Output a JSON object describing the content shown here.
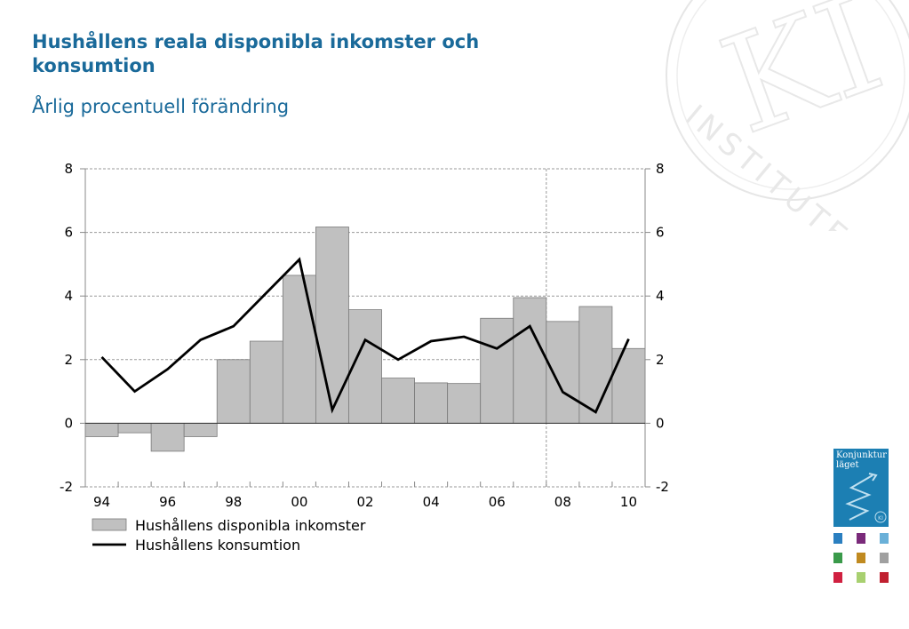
{
  "title": "Hushållens reala disponibla inkomster och konsumtion",
  "subtitle": "Årlig procentuell förändring",
  "watermark": {
    "text": "INSTITUTET",
    "monogram": "KI"
  },
  "logo": {
    "text_line1": "Konjunktur",
    "text_line2": "läget",
    "badge": "KI"
  },
  "chart_data": {
    "type": "bar",
    "years": [
      "94",
      "95",
      "96",
      "97",
      "98",
      "99",
      "00",
      "01",
      "02",
      "03",
      "04",
      "05",
      "06",
      "07",
      "08",
      "09",
      "10"
    ],
    "x_tick_labels": [
      "94",
      "96",
      "98",
      "00",
      "02",
      "04",
      "06",
      "08",
      "10"
    ],
    "y_ticks": [
      "-2",
      "0",
      "2",
      "4",
      "6",
      "8"
    ],
    "ylim": [
      -2,
      8
    ],
    "grid": true,
    "forecast_divider_after": "07",
    "legend_position": "bottom-left",
    "series": [
      {
        "name": "Hushållens disponibla inkomster",
        "type": "bar",
        "color": "#c0c0c0",
        "values": [
          -0.42,
          -0.3,
          -0.88,
          -0.42,
          2.0,
          2.58,
          4.65,
          6.17,
          3.57,
          1.42,
          1.27,
          1.25,
          3.3,
          3.95,
          3.2,
          3.67,
          2.35
        ]
      },
      {
        "name": "Hushållens konsumtion",
        "type": "line",
        "color": "#000000",
        "values": [
          2.08,
          1.0,
          1.7,
          2.62,
          3.05,
          4.1,
          5.15,
          0.42,
          2.62,
          2.0,
          2.58,
          2.72,
          2.35,
          3.05,
          0.98,
          0.35,
          2.65
        ]
      }
    ]
  },
  "color_squares": [
    "#2a7fc0",
    "#7a2a7a",
    "#6ab0d8",
    "#3a9a4a",
    "#c08a20",
    "#a0a0a0",
    "#d02040",
    "#a8d070",
    "#c02030"
  ]
}
